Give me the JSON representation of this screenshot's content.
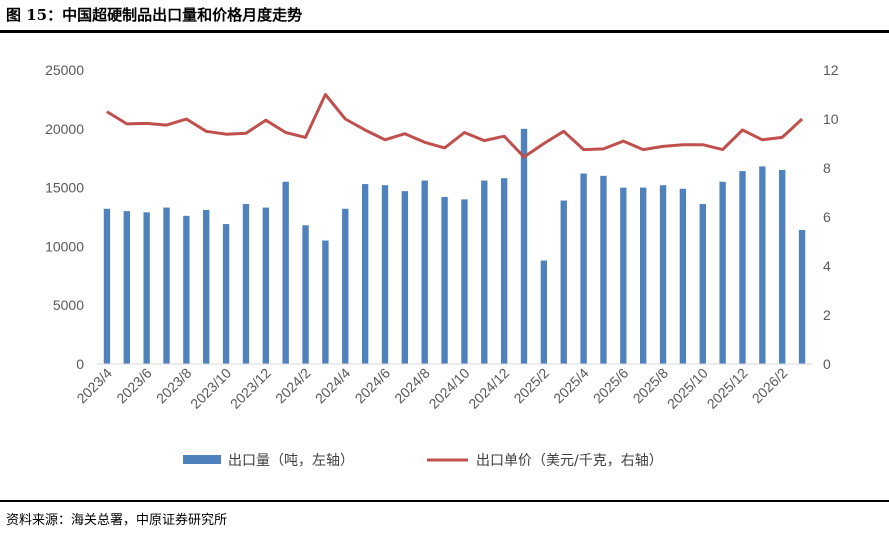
{
  "header": {
    "title": "图 15：中国超硬制品出口量和价格月度走势"
  },
  "footer": {
    "source": "资料来源：海关总署，中原证券研究所"
  },
  "colors": {
    "bar": "#4f81bd",
    "line": "#c0504d",
    "tick": "#595959"
  },
  "chart_data": {
    "type": "bar+line",
    "categories": [
      "2023/4",
      "2023/5",
      "2023/6",
      "2023/7",
      "2023/8",
      "2023/9",
      "2023/10",
      "2023/11",
      "2023/12",
      "2024/1",
      "2024/2",
      "2024/3",
      "2024/4",
      "2024/5",
      "2024/6",
      "2024/7",
      "2024/8",
      "2024/9",
      "2024/10",
      "2024/11",
      "2024/12",
      "2025/1",
      "2025/2",
      "2025/3",
      "2025/4",
      "2025/5",
      "2025/6",
      "2025/7",
      "2025/8",
      "2025/9",
      "2025/10",
      "2025/11",
      "2025/12",
      "2026/1",
      "2026/2",
      "2026/3"
    ],
    "x_tick_labels": [
      "2023/4",
      "2023/6",
      "2023/8",
      "2023/10",
      "2023/12",
      "2024/2",
      "2024/4",
      "2024/6",
      "2024/8",
      "2024/10",
      "2024/12",
      "2025/2",
      "2025/4",
      "2025/6",
      "2025/8",
      "2025/10",
      "2025/12",
      "2026/2"
    ],
    "series": [
      {
        "name": "出口量（吨，左轴）",
        "type": "bar",
        "axis": "left",
        "values": [
          13200,
          13000,
          12900,
          13300,
          12600,
          13100,
          11900,
          13600,
          13300,
          15500,
          11800,
          10500,
          13200,
          15300,
          15200,
          14700,
          15600,
          14200,
          14000,
          15600,
          15800,
          20000,
          8800,
          13900,
          16200,
          16000,
          15000,
          15000,
          15200,
          14900,
          13600,
          15500,
          16400,
          16800,
          16500,
          11400
        ]
      },
      {
        "name": "出口单价（美元/千克，右轴）",
        "type": "line",
        "axis": "right",
        "values": [
          10.3,
          9.8,
          9.82,
          9.75,
          10.0,
          9.5,
          9.38,
          9.42,
          9.95,
          9.45,
          9.25,
          11.0,
          10.0,
          9.55,
          9.15,
          9.4,
          9.05,
          8.82,
          9.45,
          9.12,
          9.3,
          8.45,
          9.0,
          9.5,
          8.75,
          8.78,
          9.1,
          8.75,
          8.88,
          8.95,
          8.95,
          8.75,
          9.55,
          9.15,
          9.25,
          10.0
        ]
      }
    ],
    "y_left": {
      "min": 0,
      "max": 25000,
      "ticks": [
        0,
        5000,
        10000,
        15000,
        20000,
        25000
      ]
    },
    "y_right": {
      "min": 0,
      "max": 12,
      "ticks": [
        0,
        2,
        4,
        6,
        8,
        10,
        12
      ]
    },
    "legend": {
      "position": "bottom",
      "bar_label": "出口量（吨，左轴）",
      "line_label": "出口单价（美元/千克，右轴）"
    }
  }
}
